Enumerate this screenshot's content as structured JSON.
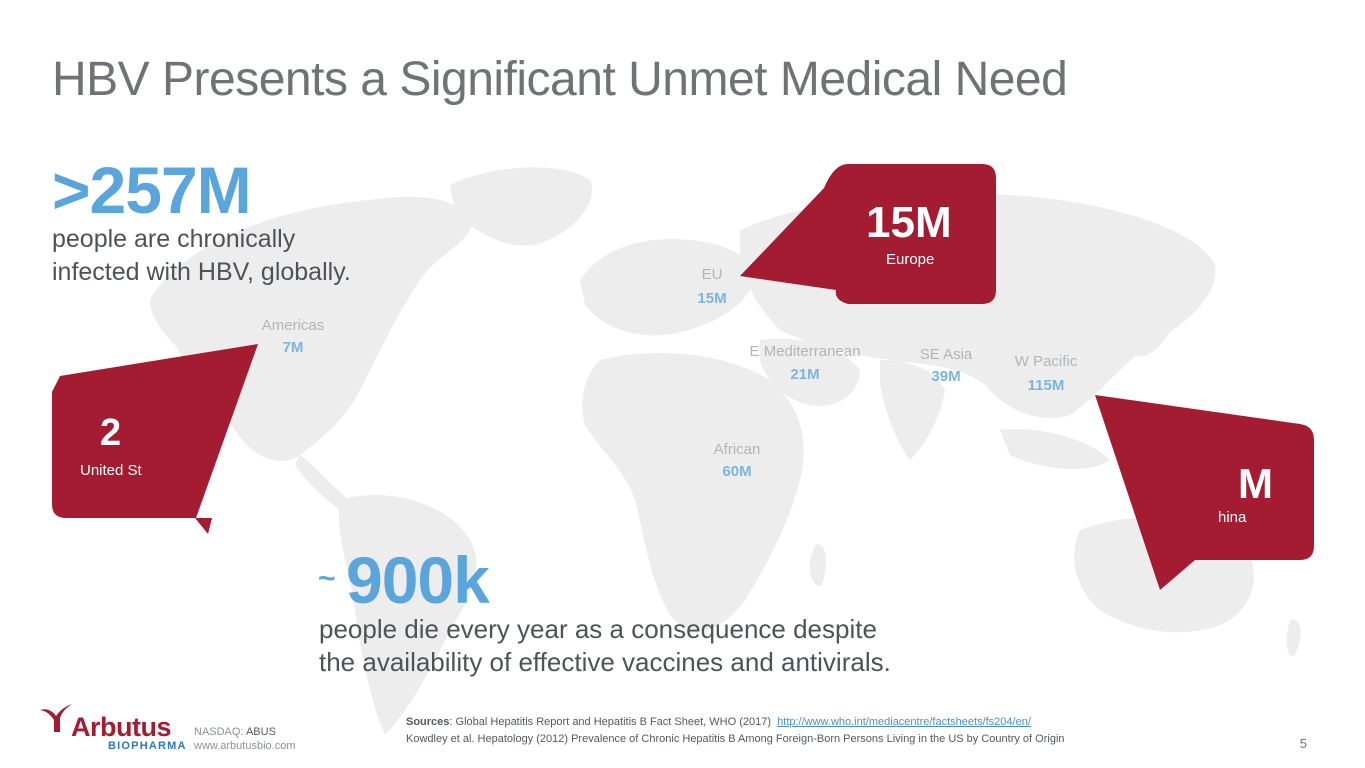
{
  "title": "HBV Presents a Significant Unmet Medical Need",
  "stats": {
    "global": {
      "value": ">257M",
      "line1": "people are chronically",
      "line2": "infected with HBV, globally."
    },
    "deaths": {
      "prefix": "~",
      "value": "900k",
      "line1": "people die every year as a consequence despite",
      "line2": "the availability of effective vaccines and antivirals."
    }
  },
  "regions": [
    {
      "name": "EU",
      "value": "15M"
    },
    {
      "name": "Americas",
      "value": "7M"
    },
    {
      "name": "E Mediterranean",
      "value": "21M"
    },
    {
      "name": "SE Asia",
      "value": "39M"
    },
    {
      "name": "W Pacific",
      "value": "115M"
    },
    {
      "name": "African",
      "value": "60M"
    }
  ],
  "callouts": {
    "europe": {
      "value": "15M",
      "label": "Europe"
    },
    "us": {
      "value": "2",
      "label": "United St"
    },
    "china": {
      "value": "M",
      "label": "hina"
    }
  },
  "footer": {
    "nasdaq_label": "NASDAQ:",
    "nasdaq_ticker": "ABUS",
    "website": "www.arbutusbio.com",
    "logo_name": "Arbutus",
    "logo_sub": "BIOPHARMA",
    "sources_label": "Sources",
    "source1": ": Global Hepatitis Report and Hepatitis B Fact Sheet, WHO (2017)",
    "source1_link": "http://www.who.int/mediacentre/factsheets/fs204/en/",
    "source2": "Kowdley et al. Hepatology (2012) Prevalence of Chronic Hepatitis B Among Foreign-Born Persons Living in the US by Country of Origin",
    "page_number": "5"
  },
  "colors": {
    "accent_red": "#a31c31",
    "accent_blue": "#5aa5dc",
    "map_gray": "#ededed"
  }
}
